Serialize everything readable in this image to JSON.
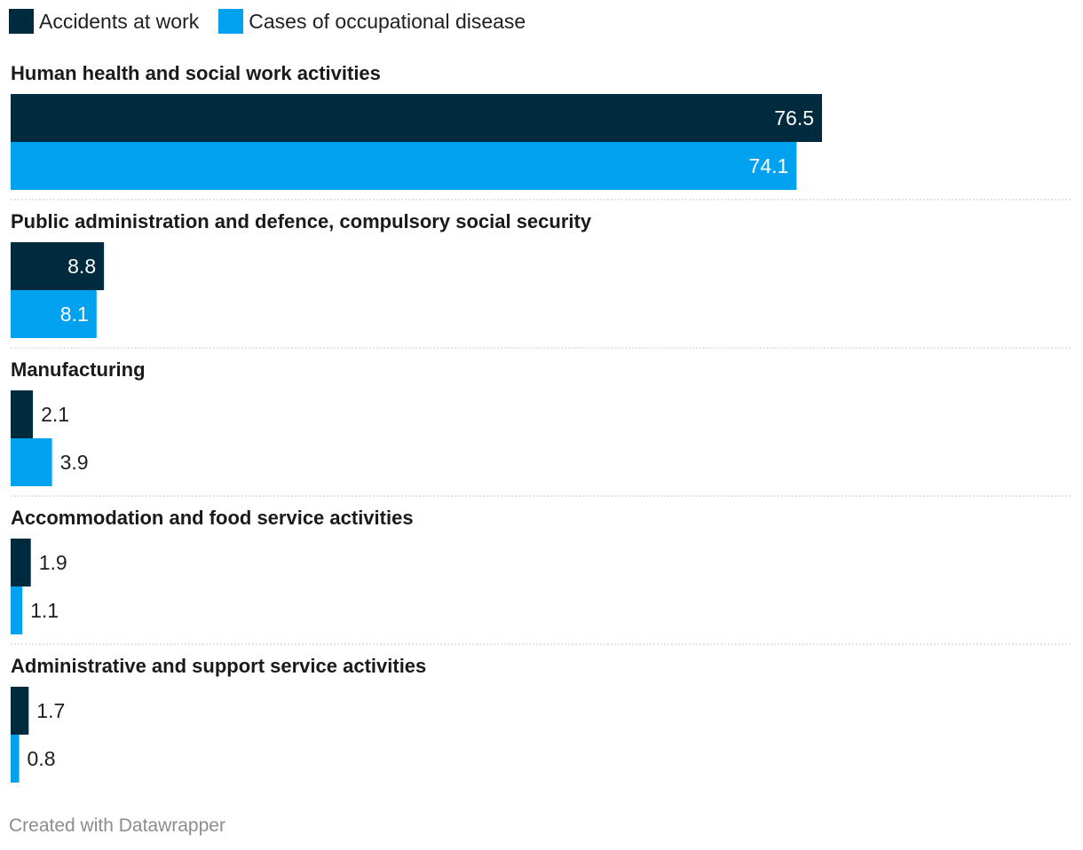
{
  "legend": {
    "items": [
      {
        "label": "Accidents at work",
        "color": "#002b3f"
      },
      {
        "label": "Cases of occupational disease",
        "color": "#00a1ef"
      }
    ]
  },
  "chart_data": {
    "type": "bar",
    "orientation": "horizontal",
    "title": "",
    "xlabel": "",
    "ylabel": "",
    "xlim": [
      0,
      76.5
    ],
    "grid": false,
    "legend_position": "top-left",
    "categories": [
      "Human health and social work activities",
      "Public administration and defence, compulsory social security",
      "Manufacturing",
      "Accommodation and food service activities",
      "Administrative and support service activities"
    ],
    "series": [
      {
        "name": "Accidents at work",
        "color": "#002b3f",
        "values": [
          76.5,
          8.8,
          2.1,
          1.9,
          1.7
        ]
      },
      {
        "name": "Cases of occupational disease",
        "color": "#00a1ef",
        "values": [
          74.1,
          8.1,
          3.9,
          1.1,
          0.8
        ]
      }
    ]
  },
  "footer": {
    "credit": "Created with Datawrapper"
  }
}
